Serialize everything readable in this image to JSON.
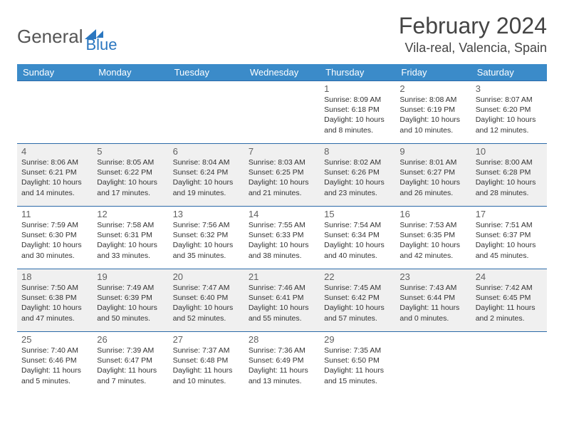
{
  "brand": {
    "part1": "General",
    "part2": "Blue"
  },
  "title": "February 2024",
  "location": "Vila-real, Valencia, Spain",
  "colors": {
    "headerBg": "#3b8bc9",
    "rule": "#2b6aa8",
    "shaded": "#f0f0f0"
  },
  "weekdays": [
    "Sunday",
    "Monday",
    "Tuesday",
    "Wednesday",
    "Thursday",
    "Friday",
    "Saturday"
  ],
  "weeks": [
    {
      "shaded": false,
      "days": [
        null,
        null,
        null,
        null,
        {
          "n": "1",
          "sr": "8:09 AM",
          "ss": "6:18 PM",
          "dl": "10 hours and 8 minutes."
        },
        {
          "n": "2",
          "sr": "8:08 AM",
          "ss": "6:19 PM",
          "dl": "10 hours and 10 minutes."
        },
        {
          "n": "3",
          "sr": "8:07 AM",
          "ss": "6:20 PM",
          "dl": "10 hours and 12 minutes."
        }
      ]
    },
    {
      "shaded": true,
      "days": [
        {
          "n": "4",
          "sr": "8:06 AM",
          "ss": "6:21 PM",
          "dl": "10 hours and 14 minutes."
        },
        {
          "n": "5",
          "sr": "8:05 AM",
          "ss": "6:22 PM",
          "dl": "10 hours and 17 minutes."
        },
        {
          "n": "6",
          "sr": "8:04 AM",
          "ss": "6:24 PM",
          "dl": "10 hours and 19 minutes."
        },
        {
          "n": "7",
          "sr": "8:03 AM",
          "ss": "6:25 PM",
          "dl": "10 hours and 21 minutes."
        },
        {
          "n": "8",
          "sr": "8:02 AM",
          "ss": "6:26 PM",
          "dl": "10 hours and 23 minutes."
        },
        {
          "n": "9",
          "sr": "8:01 AM",
          "ss": "6:27 PM",
          "dl": "10 hours and 26 minutes."
        },
        {
          "n": "10",
          "sr": "8:00 AM",
          "ss": "6:28 PM",
          "dl": "10 hours and 28 minutes."
        }
      ]
    },
    {
      "shaded": false,
      "days": [
        {
          "n": "11",
          "sr": "7:59 AM",
          "ss": "6:30 PM",
          "dl": "10 hours and 30 minutes."
        },
        {
          "n": "12",
          "sr": "7:58 AM",
          "ss": "6:31 PM",
          "dl": "10 hours and 33 minutes."
        },
        {
          "n": "13",
          "sr": "7:56 AM",
          "ss": "6:32 PM",
          "dl": "10 hours and 35 minutes."
        },
        {
          "n": "14",
          "sr": "7:55 AM",
          "ss": "6:33 PM",
          "dl": "10 hours and 38 minutes."
        },
        {
          "n": "15",
          "sr": "7:54 AM",
          "ss": "6:34 PM",
          "dl": "10 hours and 40 minutes."
        },
        {
          "n": "16",
          "sr": "7:53 AM",
          "ss": "6:35 PM",
          "dl": "10 hours and 42 minutes."
        },
        {
          "n": "17",
          "sr": "7:51 AM",
          "ss": "6:37 PM",
          "dl": "10 hours and 45 minutes."
        }
      ]
    },
    {
      "shaded": true,
      "days": [
        {
          "n": "18",
          "sr": "7:50 AM",
          "ss": "6:38 PM",
          "dl": "10 hours and 47 minutes."
        },
        {
          "n": "19",
          "sr": "7:49 AM",
          "ss": "6:39 PM",
          "dl": "10 hours and 50 minutes."
        },
        {
          "n": "20",
          "sr": "7:47 AM",
          "ss": "6:40 PM",
          "dl": "10 hours and 52 minutes."
        },
        {
          "n": "21",
          "sr": "7:46 AM",
          "ss": "6:41 PM",
          "dl": "10 hours and 55 minutes."
        },
        {
          "n": "22",
          "sr": "7:45 AM",
          "ss": "6:42 PM",
          "dl": "10 hours and 57 minutes."
        },
        {
          "n": "23",
          "sr": "7:43 AM",
          "ss": "6:44 PM",
          "dl": "11 hours and 0 minutes."
        },
        {
          "n": "24",
          "sr": "7:42 AM",
          "ss": "6:45 PM",
          "dl": "11 hours and 2 minutes."
        }
      ]
    },
    {
      "shaded": false,
      "days": [
        {
          "n": "25",
          "sr": "7:40 AM",
          "ss": "6:46 PM",
          "dl": "11 hours and 5 minutes."
        },
        {
          "n": "26",
          "sr": "7:39 AM",
          "ss": "6:47 PM",
          "dl": "11 hours and 7 minutes."
        },
        {
          "n": "27",
          "sr": "7:37 AM",
          "ss": "6:48 PM",
          "dl": "11 hours and 10 minutes."
        },
        {
          "n": "28",
          "sr": "7:36 AM",
          "ss": "6:49 PM",
          "dl": "11 hours and 13 minutes."
        },
        {
          "n": "29",
          "sr": "7:35 AM",
          "ss": "6:50 PM",
          "dl": "11 hours and 15 minutes."
        },
        null,
        null
      ]
    }
  ],
  "labels": {
    "sunrise": "Sunrise:",
    "sunset": "Sunset:",
    "daylight": "Daylight:"
  }
}
